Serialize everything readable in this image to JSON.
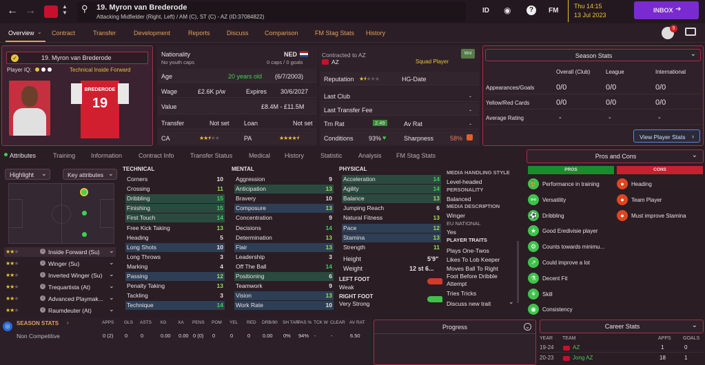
{
  "header": {
    "player_name": "19. Myron van Brederode",
    "player_desc": "Attacking Midfielder (Right, Left) / AM (C), ST (C) - AZ (ID:37084822)",
    "id_label": "ID",
    "fm_label": "FM",
    "date_time": "Thu 14:15",
    "date": "13 Jul 2023",
    "inbox": "INBOX",
    "notif_count": "9"
  },
  "nav": [
    "Overview",
    "Contract",
    "Transfer",
    "Development",
    "Reports",
    "Discuss",
    "Comparison",
    "FM Stag Stats",
    "History"
  ],
  "profile": {
    "name": "19. Myron van Brederode",
    "iq_label": "Player IQ:",
    "role": "Technical Inside Forward",
    "shirt_name": "BREDERODE",
    "shirt_number": "19"
  },
  "info": {
    "nationality_label": "Nationality",
    "nationality": "NED",
    "youth": "No youth caps",
    "caps": "0 caps / 0 goals",
    "age_label": "Age",
    "age": "20 years old",
    "dob": "(6/7/2003)",
    "wage_label": "Wage",
    "wage": "£2.6K p/w",
    "expires_label": "Expires",
    "expires": "30/6/2027",
    "value_label": "Value",
    "value": "£8.4M - £11.5M",
    "transfer_label": "Transfer",
    "transfer": "Not set",
    "loan_label": "Loan",
    "loan": "Not set",
    "ca_label": "CA",
    "pa_label": "PA"
  },
  "contract": {
    "contracted_label": "Contracted to AZ",
    "club": "AZ",
    "squad": "Squad Player",
    "wnt": "Wnt",
    "reputation": "Reputation",
    "hg": "HG-Date",
    "last_club": "Last Club",
    "last_club_val": "-",
    "last_fee": "Last Transfer Fee",
    "last_fee_val": "-",
    "trn_rat": "Trn Rat",
    "trn_val": "2.49",
    "av_rat": "Av Rat",
    "av_val": "-",
    "conditions": "Conditions",
    "cond_val": "93%",
    "sharpness": "Sharpness",
    "sharp_val": "58%"
  },
  "season": {
    "title": "Season Stats",
    "cols": [
      "Overall (Club)",
      "League",
      "International"
    ],
    "rows": [
      {
        "label": "Appearances/Goals",
        "vals": [
          "0/0",
          "0/0",
          "0/0"
        ]
      },
      {
        "label": "Yellow/Red Cards",
        "vals": [
          "0/0",
          "0/0",
          "0/0"
        ]
      },
      {
        "label": "Average Rating",
        "vals": [
          "-",
          "-",
          "-"
        ]
      }
    ],
    "view_btn": "View Player Stats"
  },
  "subtabs": [
    "Attributes",
    "Training",
    "Information",
    "Contract Info",
    "Transfer Status",
    "Medical",
    "History",
    "Statistic",
    "Analysis",
    "FM Stag Stats"
  ],
  "highlight": "Highlight",
  "key_attr": "Key attributes",
  "roles": [
    {
      "name": "Inside Forward (Su)"
    },
    {
      "name": "Winger (Su)"
    },
    {
      "name": "Inverted Winger (Su)"
    },
    {
      "name": "Trequartista (At)"
    },
    {
      "name": "Advanced Playmak..."
    },
    {
      "name": "Raumdeuter (At)"
    }
  ],
  "technical": {
    "title": "TECHNICAL",
    "items": [
      [
        "Corners",
        "10"
      ],
      [
        "Crossing",
        "11"
      ],
      [
        "Dribbling",
        "15"
      ],
      [
        "Finishing",
        "15"
      ],
      [
        "First Touch",
        "14"
      ],
      [
        "Free Kick Taking",
        "13"
      ],
      [
        "Heading",
        "5"
      ],
      [
        "Long Shots",
        "10"
      ],
      [
        "Long Throws",
        "3"
      ],
      [
        "Marking",
        "4"
      ],
      [
        "Passing",
        "12"
      ],
      [
        "Penalty Taking",
        "13"
      ],
      [
        "Tackling",
        "3"
      ],
      [
        "Technique",
        "14"
      ]
    ]
  },
  "mental": {
    "title": "MENTAL",
    "items": [
      [
        "Aggression",
        "9"
      ],
      [
        "Anticipation",
        "13"
      ],
      [
        "Bravery",
        "10"
      ],
      [
        "Composure",
        "13"
      ],
      [
        "Concentration",
        "9"
      ],
      [
        "Decisions",
        "14"
      ],
      [
        "Determination",
        "13"
      ],
      [
        "Flair",
        "13"
      ],
      [
        "Leadership",
        "3"
      ],
      [
        "Off The Ball",
        "14"
      ],
      [
        "Positioning",
        "6"
      ],
      [
        "Teamwork",
        "9"
      ],
      [
        "Vision",
        "13"
      ],
      [
        "Work Rate",
        "10"
      ]
    ]
  },
  "physical": {
    "title": "PHYSICAL",
    "items": [
      [
        "Acceleration",
        "14"
      ],
      [
        "Agility",
        "14"
      ],
      [
        "Balance",
        "13"
      ],
      [
        "Jumping Reach",
        "6"
      ],
      [
        "Natural Fitness",
        "13"
      ],
      [
        "Pace",
        "12"
      ],
      [
        "Stamina",
        "13"
      ],
      [
        "Strength",
        "11"
      ]
    ]
  },
  "body": {
    "height_label": "Height",
    "height": "5'9\"",
    "weight_label": "Weight",
    "weight": "12 st 6...",
    "left_foot_label": "LEFT FOOT",
    "left_foot": "Weak",
    "right_foot_label": "RIGHT FOOT",
    "right_foot": "Very Strong"
  },
  "media": {
    "mh_title": "MEDIA HANDLING STYLE",
    "mh": "Level-headed",
    "pers_title": "PERSONALITY",
    "pers": "Balanced",
    "desc_title": "MEDIA DESCRIPTION",
    "desc": "Winger",
    "eu_title": "EU NATIONAL",
    "eu": "Yes",
    "traits_title": "PLAYER TRAITS",
    "traits": [
      "Plays One-Twos",
      "Likes To Lob Keeper",
      "Moves Ball To Right",
      "Foot Before Dribble",
      "Attempt",
      "Tries Tricks"
    ],
    "discuss": "Discuss new trait"
  },
  "proscons": {
    "title": "Pros and Cons",
    "pros_label": "PROS",
    "cons_label": "CONS",
    "pros": [
      "Performance in training",
      "Versatility",
      "Dribbling",
      "Good Eredivisie player",
      "Counts towards minimu...",
      "Could improve a lot",
      "Decent Fit",
      "Skill",
      "Consistency"
    ],
    "cons": [
      "Heading",
      "Team Player",
      "Must improve Stamina"
    ]
  },
  "bottom": {
    "season_stats": "SEASON STATS",
    "cols": [
      "APPS",
      "GLS",
      "ASTS",
      "XG",
      "XA",
      "PENS",
      "POM",
      "YEL",
      "RED",
      "DRB/90",
      "SH TAR",
      "PAS %",
      "TCK W",
      "CLEAR",
      "AV RAT"
    ],
    "row_label": "Non Competitive",
    "row": [
      "0 (2)",
      "0",
      "0",
      "0.00",
      "0.00",
      "0 (0)",
      "0",
      "0",
      "0",
      "0.00",
      "0%",
      "94%",
      "-",
      "-",
      "6.50"
    ],
    "progress": "Progress",
    "career": "Career Stats",
    "career_cols": [
      "YEAR",
      "TEAM",
      "APPS",
      "GOALS"
    ],
    "career_rows": [
      [
        "19-24",
        "AZ",
        "1",
        "0"
      ],
      [
        "20-23",
        "Jong AZ",
        "18",
        "1"
      ]
    ]
  },
  "colors": {
    "accent": "#a3304a",
    "inbox": "#7a2ad1",
    "green": "#3fd054",
    "yellow": "#e8c43a"
  }
}
